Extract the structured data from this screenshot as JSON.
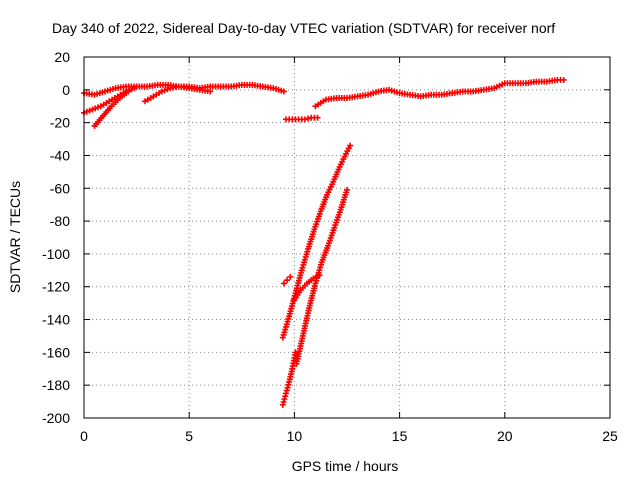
{
  "chart_data": {
    "type": "scatter",
    "title": "Day 340 of 2022, Sidereal Day-to-day VTEC variation (SDTVAR) for receiver norf",
    "xlabel": "GPS time / hours",
    "ylabel": "SDTVAR / TECUs",
    "xlim": [
      0,
      25
    ],
    "ylim": [
      -200,
      20
    ],
    "xticks": [
      0,
      5,
      10,
      15,
      20,
      25
    ],
    "yticks": [
      20,
      0,
      -20,
      -40,
      -60,
      -80,
      -100,
      -120,
      -140,
      -160,
      -180,
      -200
    ],
    "grid": true,
    "marker_color": "#ff0000",
    "series": [
      {
        "x": [
          0,
          0.5,
          1,
          1.5,
          2,
          2.5,
          3,
          3.5,
          4,
          4.5,
          5,
          5.5,
          6,
          6.5,
          7,
          7.5,
          8,
          8.5,
          9,
          9.5
        ],
        "y": [
          -2,
          -3,
          -1,
          1,
          2,
          2,
          2,
          3,
          3,
          2,
          2,
          1,
          2,
          2,
          2,
          3,
          3,
          2,
          1,
          -1
        ]
      },
      {
        "x": [
          0,
          0.4,
          0.8,
          1.2,
          1.6,
          2.0,
          2.4
        ],
        "y": [
          -14,
          -12,
          -10,
          -7,
          -4,
          -1,
          1
        ]
      },
      {
        "x": [
          0.5,
          0.9,
          1.3,
          1.7,
          2.1
        ],
        "y": [
          -22,
          -16,
          -10,
          -5,
          -1
        ]
      },
      {
        "x": [
          2.9,
          3.3,
          3.7,
          4.1,
          4.5,
          5.0,
          5.5,
          6.0
        ],
        "y": [
          -7,
          -4,
          -1,
          1,
          2,
          1,
          0,
          -1
        ]
      },
      {
        "x": [
          9.6,
          9.9,
          10.2,
          10.5,
          10.8,
          11.1
        ],
        "y": [
          -18,
          -18,
          -18,
          -18,
          -17,
          -17
        ]
      },
      {
        "x": [
          11,
          11.5,
          12,
          12.5,
          13,
          13.5,
          14,
          14.5,
          15,
          15.5,
          16,
          16.5,
          17,
          17.5,
          18,
          18.5,
          19,
          19.5,
          20,
          20.5,
          21,
          21.5,
          22,
          22.5,
          22.8
        ],
        "y": [
          -10,
          -6,
          -5,
          -5,
          -4,
          -3,
          -1,
          0,
          -2,
          -3,
          -4,
          -3,
          -3,
          -2,
          -1,
          -1,
          0,
          1,
          4,
          4,
          4,
          5,
          5,
          6,
          6
        ]
      },
      {
        "x": [
          9.45,
          9.75,
          10.05,
          10.35,
          10.65,
          10.95,
          11.25,
          11.55,
          11.85,
          12.15,
          12.45,
          12.65
        ],
        "y": [
          -151,
          -138,
          -124,
          -110,
          -97,
          -85,
          -74,
          -64,
          -56,
          -47,
          -39,
          -34
        ]
      },
      {
        "x": [
          9.45,
          9.6,
          9.75,
          9.9,
          10.05
        ],
        "y": [
          -192,
          -185,
          -178,
          -170,
          -160
        ]
      },
      {
        "x": [
          9.5,
          9.65,
          9.8
        ],
        "y": [
          -118,
          -116,
          -114
        ]
      },
      {
        "x": [
          10.1,
          10.4,
          10.7,
          11.0,
          11.3,
          11.6,
          11.9,
          12.2,
          12.5
        ],
        "y": [
          -167,
          -150,
          -133,
          -118,
          -105,
          -95,
          -84,
          -73,
          -61
        ]
      },
      {
        "x": [
          10.0,
          10.3,
          10.6,
          10.9,
          11.2
        ],
        "y": [
          -128,
          -122,
          -118,
          -115,
          -113
        ]
      }
    ]
  }
}
